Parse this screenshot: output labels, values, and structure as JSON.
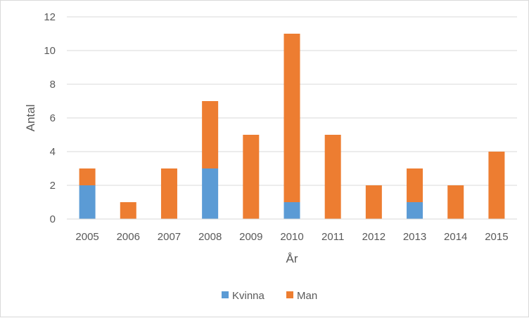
{
  "chart_data": {
    "type": "bar",
    "stacked": true,
    "categories": [
      "2005",
      "2006",
      "2007",
      "2008",
      "2009",
      "2010",
      "2011",
      "2012",
      "2013",
      "2014",
      "2015"
    ],
    "series": [
      {
        "name": "Kvinna",
        "color": "#5b9bd5",
        "values": [
          2,
          0,
          0,
          3,
          0,
          1,
          0,
          0,
          1,
          0,
          0
        ]
      },
      {
        "name": "Man",
        "color": "#ed7d31",
        "values": [
          1,
          1,
          3,
          4,
          5,
          10,
          5,
          2,
          2,
          2,
          4
        ]
      }
    ],
    "xlabel": "År",
    "ylabel": "Antal",
    "ylim": [
      0,
      12
    ],
    "yticks": [
      "0",
      "2",
      "4",
      "6",
      "8",
      "10",
      "12"
    ],
    "grid": true,
    "legend": "bottom"
  }
}
